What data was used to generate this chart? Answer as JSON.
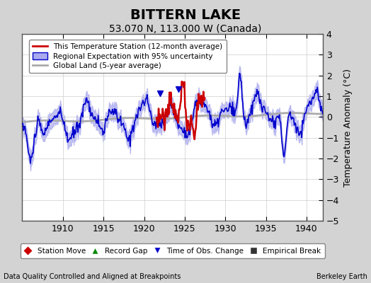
{
  "title": "BITTERN LAKE",
  "subtitle": "53.070 N, 113.000 W (Canada)",
  "ylabel": "Temperature Anomaly (°C)",
  "xlabel_left": "Data Quality Controlled and Aligned at Breakpoints",
  "xlabel_right": "Berkeley Earth",
  "xlim": [
    1905,
    1942
  ],
  "ylim": [
    -5,
    4
  ],
  "yticks": [
    -5,
    -4,
    -3,
    -2,
    -1,
    0,
    1,
    2,
    3,
    4
  ],
  "xticks": [
    1910,
    1915,
    1920,
    1925,
    1930,
    1935,
    1940
  ],
  "bg_color": "#d3d3d3",
  "plot_bg_color": "#ffffff",
  "grid_color": "#cccccc",
  "blue_line_color": "#0000cc",
  "blue_fill_color": "#aaaaee",
  "red_line_color": "#cc0000",
  "gray_line_color": "#aaaaaa",
  "legend_items": [
    {
      "label": "This Temperature Station (12-month average)",
      "color": "#cc0000",
      "lw": 2
    },
    {
      "label": "Regional Expectation with 95% uncertainty",
      "color": "#0000cc",
      "lw": 2
    },
    {
      "label": "Global Land (5-year average)",
      "color": "#aaaaaa",
      "lw": 2
    }
  ],
  "marker_legend": [
    {
      "label": "Station Move",
      "marker": "D",
      "color": "#cc0000"
    },
    {
      "label": "Record Gap",
      "marker": "^",
      "color": "#008800"
    },
    {
      "label": "Time of Obs. Change",
      "marker": "v",
      "color": "#0000cc"
    },
    {
      "label": "Empirical Break",
      "marker": "s",
      "color": "#333333"
    }
  ]
}
